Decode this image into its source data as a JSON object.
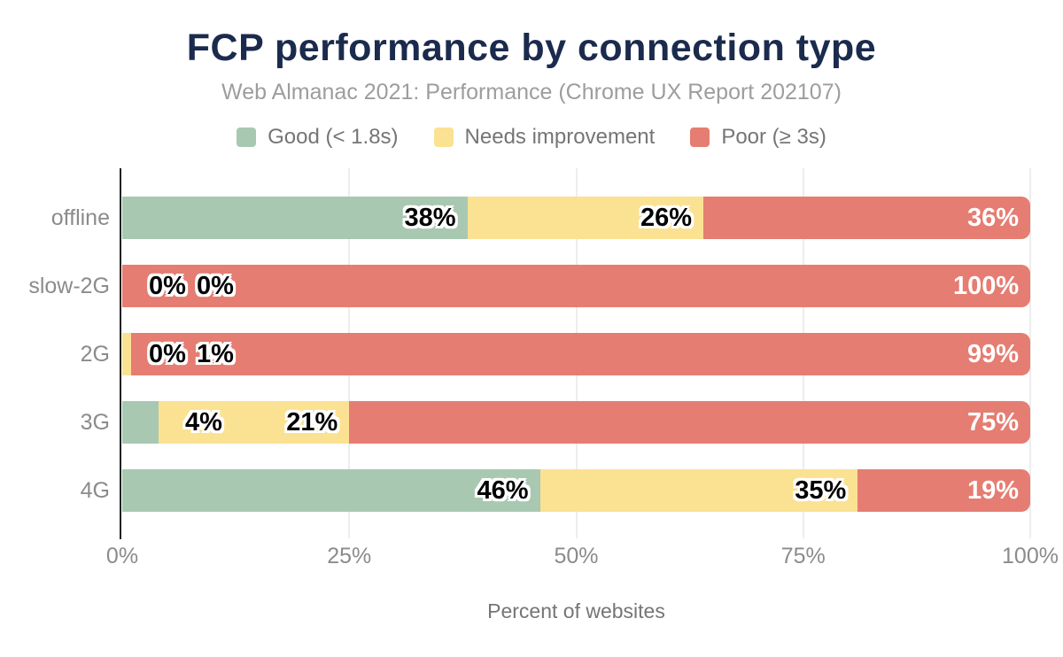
{
  "title": "FCP performance by connection type",
  "subtitle": "Web Almanac 2021: Performance (Chrome UX Report 202107)",
  "chart_data": {
    "type": "bar",
    "stacked": true,
    "orientation": "horizontal",
    "title": "FCP performance by connection type",
    "subtitle": "Web Almanac 2021: Performance (Chrome UX Report 202107)",
    "categories": [
      "offline",
      "slow-2G",
      "2G",
      "3G",
      "4G"
    ],
    "series": [
      {
        "name": "Good (< 1.8s)",
        "color": "#a8c8b2",
        "values": [
          38,
          0,
          0,
          4,
          46
        ]
      },
      {
        "name": "Needs improvement",
        "color": "#fbe192",
        "values": [
          26,
          0,
          1,
          21,
          35
        ]
      },
      {
        "name": "Poor (≥ 3s)",
        "color": "#e57d72",
        "values": [
          36,
          100,
          99,
          75,
          19
        ]
      }
    ],
    "value_suffix": "%",
    "xlabel": "Percent of websites",
    "x_ticks": [
      "0%",
      "25%",
      "50%",
      "75%",
      "100%"
    ],
    "xlim": [
      0,
      100
    ],
    "grid": "vertical",
    "legend_position": "top"
  },
  "colors": {
    "title": "#1b2b4d",
    "subtitle": "#9d9d9d",
    "legend_text": "#757575",
    "axis_text": "#8b8b8b",
    "axis_line": "#222222",
    "gridline": "#ededed",
    "label_on_light": "#000000",
    "label_on_poor": "#ffffff",
    "background": "#ffffff"
  }
}
